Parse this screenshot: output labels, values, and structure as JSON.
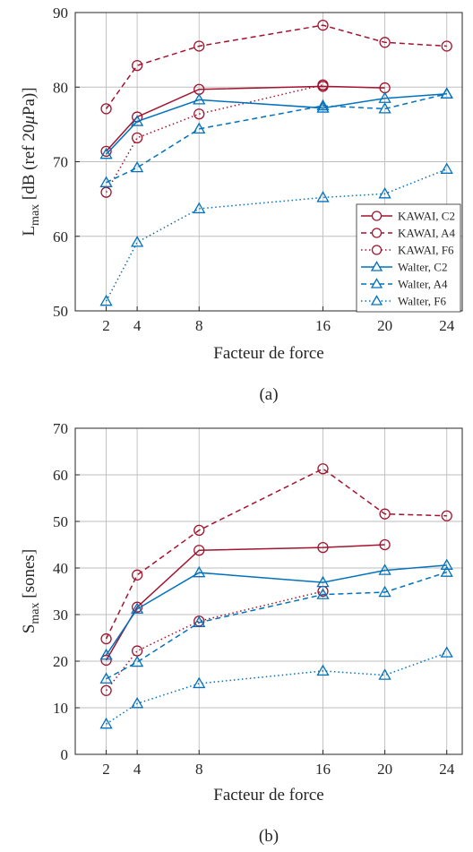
{
  "chart_data": [
    {
      "type": "line",
      "caption": "(a)",
      "xlabel": "Facteur de force",
      "ylabel": {
        "main": "L",
        "sub": "max",
        "rest": " [dB (ref 20",
        "mu": "μ",
        "end": "Pa)]"
      },
      "x": [
        2,
        4,
        8,
        16,
        20,
        24
      ],
      "xlim": [
        0,
        25
      ],
      "ylim": [
        50,
        90
      ],
      "yticks": [
        50,
        60,
        70,
        80,
        90
      ],
      "grid": true,
      "legend_position": "bottom-right",
      "series": [
        {
          "name": "KAWAI, C2",
          "color": "#a2142f",
          "dash": "solid",
          "marker": "circle",
          "x": [
            2,
            4,
            8,
            16,
            20
          ],
          "values": [
            71.4,
            76.0,
            79.7,
            80.1,
            79.9
          ]
        },
        {
          "name": "KAWAI, A4",
          "color": "#a2142f",
          "dash": "dashed",
          "marker": "circle",
          "x": [
            2,
            4,
            8,
            16,
            20,
            24
          ],
          "values": [
            77.1,
            82.9,
            85.5,
            88.3,
            86.0,
            85.5
          ]
        },
        {
          "name": "KAWAI, F6",
          "color": "#a2142f",
          "dash": "dotted",
          "marker": "circle",
          "x": [
            2,
            4,
            8,
            16
          ],
          "values": [
            65.9,
            73.2,
            76.4,
            80.3
          ]
        },
        {
          "name": "Walter, C2",
          "color": "#0072bd",
          "dash": "solid",
          "marker": "triangle",
          "x": [
            2,
            4,
            8,
            16,
            20,
            24
          ],
          "values": [
            71.0,
            75.4,
            78.3,
            77.2,
            78.5,
            79.1
          ]
        },
        {
          "name": "Walter, A4",
          "color": "#0072bd",
          "dash": "dashed",
          "marker": "triangle",
          "x": [
            2,
            4,
            8,
            16,
            20,
            24
          ],
          "values": [
            67.2,
            69.2,
            74.4,
            77.5,
            77.1,
            79.1
          ]
        },
        {
          "name": "Walter, F6",
          "color": "#0072bd",
          "dash": "dotted",
          "marker": "triangle",
          "x": [
            2,
            4,
            8,
            16,
            20,
            24
          ],
          "values": [
            51.3,
            59.2,
            63.7,
            65.2,
            65.7,
            69.0
          ]
        }
      ]
    },
    {
      "type": "line",
      "caption": "(b)",
      "xlabel": "Facteur de force",
      "ylabel": {
        "main": "S",
        "sub": "max",
        "rest": " [sones]"
      },
      "x": [
        2,
        4,
        8,
        16,
        20,
        24
      ],
      "xlim": [
        0,
        25
      ],
      "ylim": [
        0,
        70
      ],
      "yticks": [
        0,
        10,
        20,
        30,
        40,
        50,
        60,
        70
      ],
      "grid": true,
      "legend_position": "none",
      "series": [
        {
          "name": "KAWAI, C2",
          "color": "#a2142f",
          "dash": "solid",
          "marker": "circle",
          "x": [
            2,
            4,
            8,
            16,
            20
          ],
          "values": [
            20.2,
            31.6,
            43.8,
            44.4,
            45.0
          ]
        },
        {
          "name": "KAWAI, A4",
          "color": "#a2142f",
          "dash": "dashed",
          "marker": "circle",
          "x": [
            2,
            4,
            8,
            16,
            20,
            24
          ],
          "values": [
            24.8,
            38.5,
            48.1,
            61.3,
            51.6,
            51.2
          ]
        },
        {
          "name": "KAWAI, F6",
          "color": "#a2142f",
          "dash": "dotted",
          "marker": "circle",
          "x": [
            2,
            4,
            8,
            16
          ],
          "values": [
            13.7,
            22.2,
            28.6,
            35.0
          ]
        },
        {
          "name": "Walter, C2",
          "color": "#0072bd",
          "dash": "solid",
          "marker": "triangle",
          "x": [
            2,
            4,
            8,
            16,
            20,
            24
          ],
          "values": [
            21.3,
            31.2,
            39.0,
            36.9,
            39.5,
            40.6
          ]
        },
        {
          "name": "Walter, A4",
          "color": "#0072bd",
          "dash": "dashed",
          "marker": "triangle",
          "x": [
            2,
            4,
            8,
            16,
            20,
            24
          ],
          "values": [
            16.2,
            19.8,
            28.3,
            34.3,
            34.8,
            39.1
          ]
        },
        {
          "name": "Walter, F6",
          "color": "#0072bd",
          "dash": "dotted",
          "marker": "triangle",
          "x": [
            2,
            4,
            8,
            16,
            20,
            24
          ],
          "values": [
            6.5,
            10.9,
            15.2,
            17.9,
            17.0,
            21.8
          ]
        }
      ]
    }
  ]
}
